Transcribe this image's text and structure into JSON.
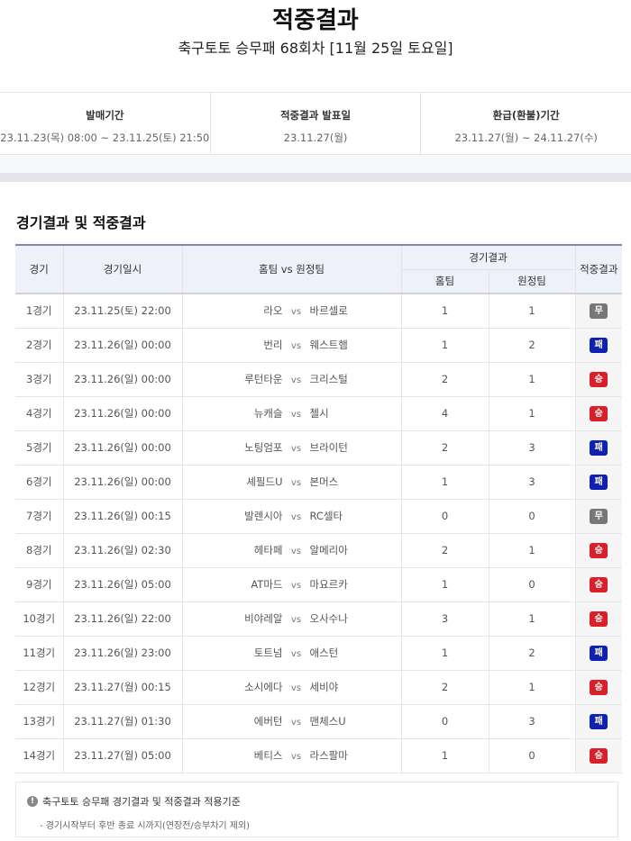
{
  "title": "적중결과",
  "subtitle": "축구토토 승무패 68회차 [11월 25일 토요일]",
  "info": [
    {
      "label": "발매기간",
      "value": "23.11.23(목) 08:00 ~ 23.11.25(토) 21:50"
    },
    {
      "label": "적중결과 발표일",
      "value": "23.11.27(월)"
    },
    {
      "label": "환급(환불)기간",
      "value": "23.11.27(월) ~ 24.11.27(수)"
    }
  ],
  "section_title": "경기결과 및 적중결과",
  "headers": {
    "game": "경기",
    "datetime": "경기일시",
    "teams": "홈팀 vs 원정팀",
    "result_group": "경기결과",
    "home": "홈팀",
    "away": "원정팀",
    "outcome": "적중결과"
  },
  "vs": "vs",
  "colors": {
    "win": "#d9202a",
    "draw": "#777777",
    "lose": "#1020b0"
  },
  "rows": [
    {
      "game": "1경기",
      "datetime": "23.11.25(토) 22:00",
      "home": "라오",
      "away": "바르셀로",
      "hs": "1",
      "as": "1",
      "outcome": "무",
      "type": "draw"
    },
    {
      "game": "2경기",
      "datetime": "23.11.26(일) 00:00",
      "home": "번리",
      "away": "웨스트햄",
      "hs": "1",
      "as": "2",
      "outcome": "패",
      "type": "lose"
    },
    {
      "game": "3경기",
      "datetime": "23.11.26(일) 00:00",
      "home": "루턴타운",
      "away": "크리스털",
      "hs": "2",
      "as": "1",
      "outcome": "승",
      "type": "win"
    },
    {
      "game": "4경기",
      "datetime": "23.11.26(일) 00:00",
      "home": "뉴캐슬",
      "away": "첼시",
      "hs": "4",
      "as": "1",
      "outcome": "승",
      "type": "win"
    },
    {
      "game": "5경기",
      "datetime": "23.11.26(일) 00:00",
      "home": "노팅엄포",
      "away": "브라이턴",
      "hs": "2",
      "as": "3",
      "outcome": "패",
      "type": "lose"
    },
    {
      "game": "6경기",
      "datetime": "23.11.26(일) 00:00",
      "home": "셰필드U",
      "away": "본머스",
      "hs": "1",
      "as": "3",
      "outcome": "패",
      "type": "lose"
    },
    {
      "game": "7경기",
      "datetime": "23.11.26(일) 00:15",
      "home": "발렌시아",
      "away": "RC셀타",
      "hs": "0",
      "as": "0",
      "outcome": "무",
      "type": "draw"
    },
    {
      "game": "8경기",
      "datetime": "23.11.26(일) 02:30",
      "home": "헤타페",
      "away": "알메리아",
      "hs": "2",
      "as": "1",
      "outcome": "승",
      "type": "win"
    },
    {
      "game": "9경기",
      "datetime": "23.11.26(일) 05:00",
      "home": "AT마드",
      "away": "마요르카",
      "hs": "1",
      "as": "0",
      "outcome": "승",
      "type": "win"
    },
    {
      "game": "10경기",
      "datetime": "23.11.26(일) 22:00",
      "home": "비야레알",
      "away": "오사수나",
      "hs": "3",
      "as": "1",
      "outcome": "승",
      "type": "win"
    },
    {
      "game": "11경기",
      "datetime": "23.11.26(일) 23:00",
      "home": "토트넘",
      "away": "애스턴",
      "hs": "1",
      "as": "2",
      "outcome": "패",
      "type": "lose"
    },
    {
      "game": "12경기",
      "datetime": "23.11.27(월) 00:15",
      "home": "소시에다",
      "away": "세비야",
      "hs": "2",
      "as": "1",
      "outcome": "승",
      "type": "win"
    },
    {
      "game": "13경기",
      "datetime": "23.11.27(월) 01:30",
      "home": "에버턴",
      "away": "맨체스U",
      "hs": "0",
      "as": "3",
      "outcome": "패",
      "type": "lose"
    },
    {
      "game": "14경기",
      "datetime": "23.11.27(월) 05:00",
      "home": "베티스",
      "away": "라스팔마",
      "hs": "1",
      "as": "0",
      "outcome": "승",
      "type": "win"
    }
  ],
  "note": {
    "icon": "info-icon",
    "title": "축구토토 승무패 경기결과 및 적중결과 적용기준",
    "body": "- 경기시작부터 후반 종료 시까지(연장전/승부차기 제외)"
  }
}
